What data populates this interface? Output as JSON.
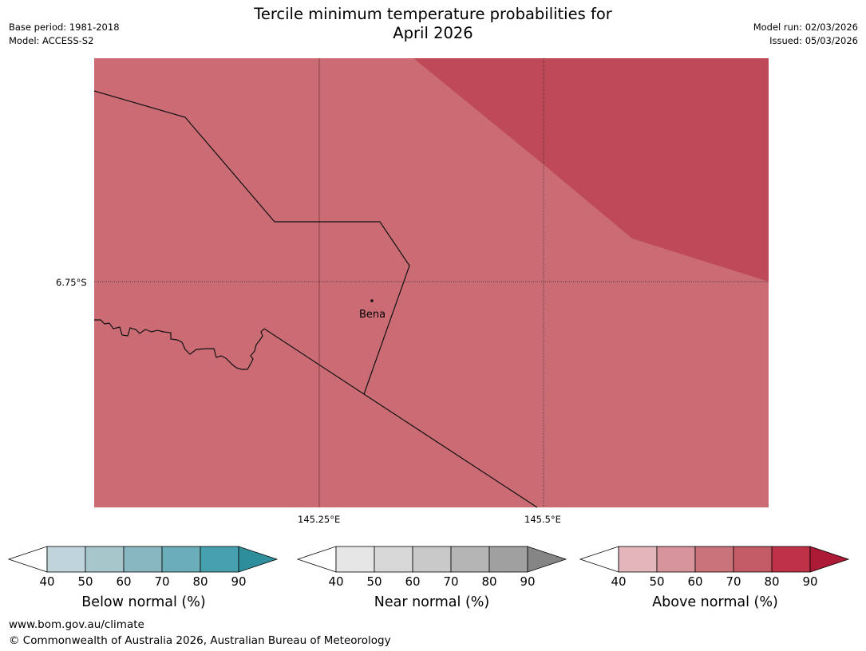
{
  "header": {
    "title_line1": "Tercile minimum temperature probabilities for",
    "title_line2": "April 2026",
    "base_period": "Base period: 1981-2018",
    "model": "Model: ACCESS-S2",
    "model_run": "Model run: 02/03/2026",
    "issued": "Issued: 05/03/2026"
  },
  "map": {
    "lat_label": "6.75°S",
    "lon_labels": [
      "145.25°E",
      "145.5°E"
    ],
    "place_label": "Bena",
    "colors": {
      "main_fill": "#cb6c75",
      "high_fill": "#bf4a57",
      "border": "#111111"
    }
  },
  "colorbars": [
    {
      "title": "Below normal (%)",
      "ticks": [
        "40",
        "50",
        "60",
        "70",
        "80",
        "90"
      ],
      "colors": [
        "#ffffff",
        "#bfd5db",
        "#a6c6cc",
        "#89b7c1",
        "#6badb8",
        "#46a0ae",
        "#2e8e9c"
      ]
    },
    {
      "title": "Near normal (%)",
      "ticks": [
        "40",
        "50",
        "60",
        "70",
        "80",
        "90"
      ],
      "colors": [
        "#ffffff",
        "#e6e6e6",
        "#d8d8d8",
        "#c9c9c9",
        "#b5b5b5",
        "#a0a0a0",
        "#858585"
      ]
    },
    {
      "title": "Above normal (%)",
      "ticks": [
        "40",
        "50",
        "60",
        "70",
        "80",
        "90"
      ],
      "colors": [
        "#ffffff",
        "#e2b6bb",
        "#d7949b",
        "#cb737a",
        "#c35b66",
        "#be3147",
        "#ac1a35"
      ]
    }
  ],
  "footer": {
    "url": "www.bom.gov.au/climate",
    "copyright": "© Commonwealth of Australia 2026, Australian Bureau of Meteorology"
  }
}
